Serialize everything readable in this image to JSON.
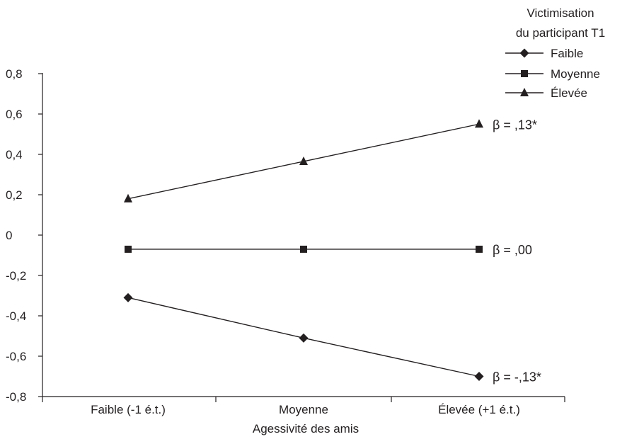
{
  "chart_data": {
    "type": "line",
    "xlabel": "Agessivité des amis",
    "ylabel": "",
    "categories": [
      "Faible (-1 é.t.)",
      "Moyenne",
      "Élevée (+1 é.t.)"
    ],
    "ylim": [
      -0.8,
      0.8
    ],
    "yticks": [
      0.8,
      0.6,
      0.4,
      0.2,
      0,
      -0.2,
      -0.4,
      -0.6,
      -0.8
    ],
    "ytick_labels": [
      "0,8",
      "0,6",
      "0,4",
      "0,2",
      "0",
      "-0,2",
      "-0,4",
      "-0,6",
      "-0,8"
    ],
    "grid": false,
    "legend": {
      "title_line1": "Victimisation",
      "title_line2": "du participant T1",
      "placement": "top-right"
    },
    "series": [
      {
        "name": "Faible",
        "marker": "diamond",
        "values": [
          -0.31,
          -0.51,
          -0.7
        ],
        "annotation": "β = -,13*"
      },
      {
        "name": "Moyenne",
        "marker": "square",
        "values": [
          -0.07,
          -0.07,
          -0.07
        ],
        "annotation": "β = ,00"
      },
      {
        "name": "Élevée",
        "marker": "triangle",
        "values": [
          0.18,
          0.365,
          0.55
        ],
        "annotation": "β = ,13*"
      }
    ]
  },
  "colors": {
    "ink": "#231f20",
    "background": "#ffffff"
  }
}
